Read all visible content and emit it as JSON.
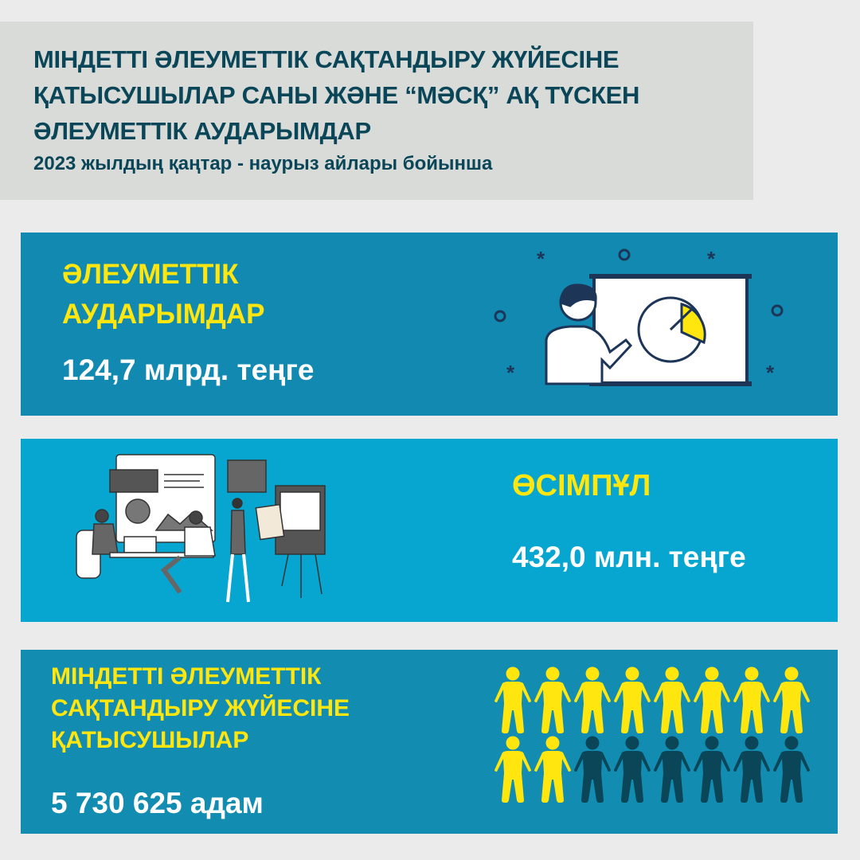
{
  "header": {
    "title": "МІНДЕТТІ ӘЛЕУМЕТТІК САҚТАНДЫРУ ЖҮЙЕСІНЕ\nҚАТЫСУШЫЛАР САНЫ ЖӘНЕ “МӘСҚ” АҚ ТҮСКЕН\nӘЛЕУМЕТТІК АУДАРЫМДАР",
    "subtitle": "2023 жылдың қаңтар - наурыз айлары бойынша"
  },
  "cards": [
    {
      "label": "ӘЛЕУМЕТТІК\nАУДАРЫМДАР",
      "value": "124,7 млрд. теңге",
      "icon": "presenter-pie-chart-icon"
    },
    {
      "label": "ӨСІМПҰЛ",
      "value": "432,0 млн. теңге",
      "icon": "team-meeting-illustration"
    },
    {
      "label": "МІНДЕТТІ ӘЛЕУМЕТТІК\nСАҚТАНДЫРУ ЖҮЙЕСІНЕ\nҚАТЫСУШЫЛАР",
      "value": "5 730 625 адам",
      "icon": "people-icons",
      "people_total": 16,
      "people_highlighted": 10
    }
  ],
  "colors": {
    "yellow": "#ffe60f",
    "dark_teal": "#0a4658",
    "card_blue": "#1189b1",
    "card_cyan": "#07a6d0"
  }
}
